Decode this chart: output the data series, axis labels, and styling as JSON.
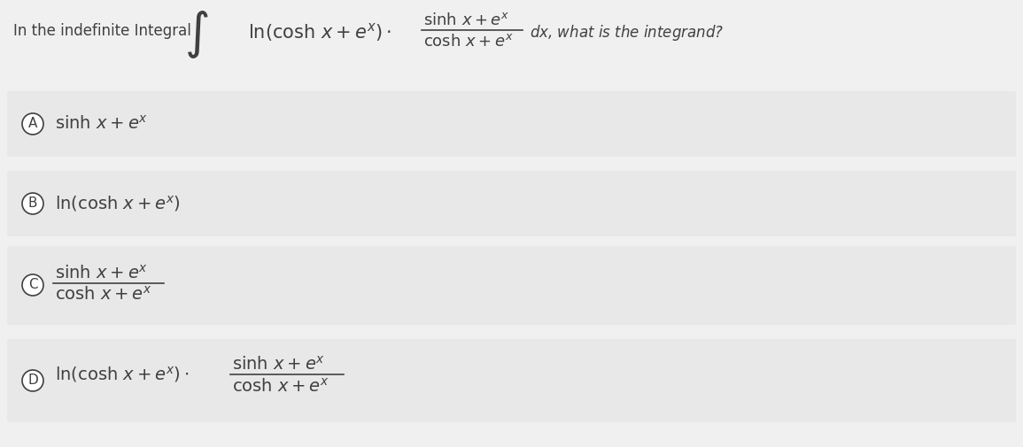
{
  "background_color": "#f0f0f0",
  "answer_box_color": "#e8e8e8",
  "text_color": "#404040",
  "circle_color": "#404040",
  "title_fontsize": 13,
  "answer_fontsize": 14,
  "question_text": "In the indefinite Integral",
  "what_text": ", what is the integrand?",
  "dx_text": "dx"
}
